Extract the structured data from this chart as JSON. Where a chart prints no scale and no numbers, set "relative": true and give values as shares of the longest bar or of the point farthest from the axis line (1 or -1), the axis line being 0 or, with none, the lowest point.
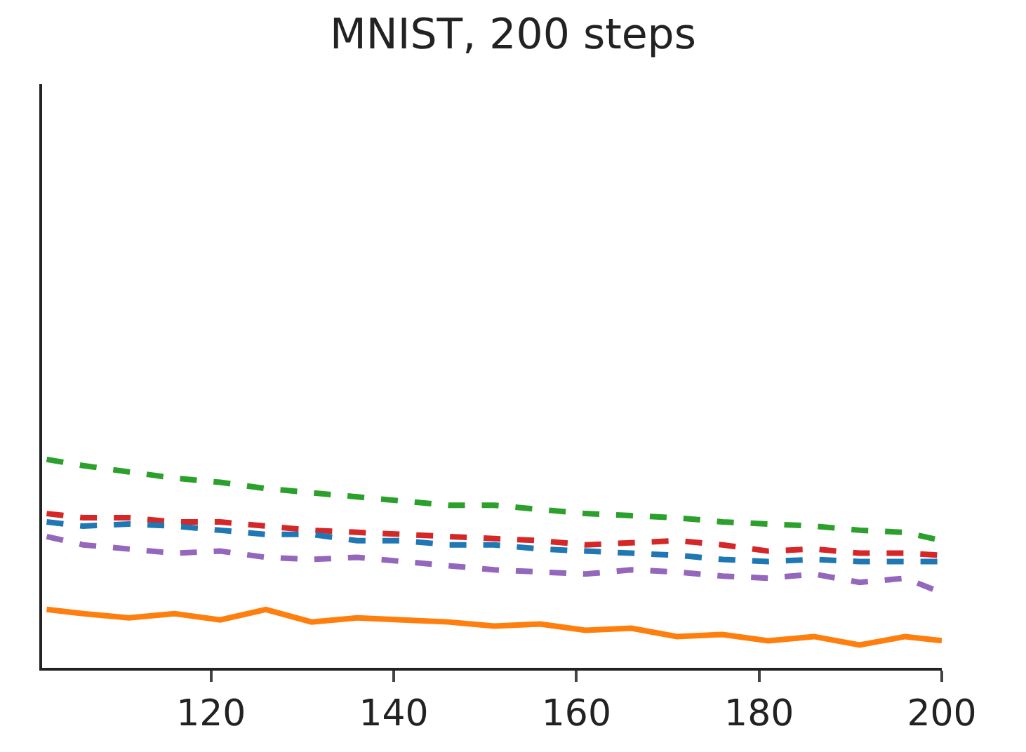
{
  "chart_data": {
    "type": "line",
    "title": "MNIST, 200 steps",
    "relative": true,
    "marker": "none",
    "x": [
      102,
      106,
      111,
      116,
      121,
      126,
      131,
      136,
      141,
      146,
      151,
      156,
      161,
      166,
      171,
      176,
      181,
      186,
      191,
      196,
      200
    ],
    "xlim": [
      101.5,
      200
    ],
    "xticks": [
      120,
      140,
      160,
      180,
      200
    ],
    "series": [
      {
        "color": "#2ca02c",
        "line_style": "dashed",
        "values": [
          1.0,
          0.97,
          0.94,
          0.91,
          0.89,
          0.86,
          0.84,
          0.82,
          0.8,
          0.78,
          0.78,
          0.76,
          0.74,
          0.73,
          0.72,
          0.7,
          0.69,
          0.68,
          0.66,
          0.65,
          0.61
        ]
      },
      {
        "color": "#d62728",
        "line_style": "dashed",
        "values": [
          0.74,
          0.72,
          0.72,
          0.7,
          0.7,
          0.68,
          0.66,
          0.65,
          0.64,
          0.63,
          0.62,
          0.61,
          0.59,
          0.6,
          0.61,
          0.59,
          0.56,
          0.57,
          0.55,
          0.55,
          0.54
        ]
      },
      {
        "color": "#1f77b4",
        "line_style": "dashed",
        "values": [
          0.7,
          0.68,
          0.69,
          0.68,
          0.66,
          0.64,
          0.64,
          0.61,
          0.61,
          0.59,
          0.59,
          0.57,
          0.56,
          0.55,
          0.54,
          0.52,
          0.51,
          0.52,
          0.51,
          0.51,
          0.51
        ]
      },
      {
        "color": "#9467bd",
        "line_style": "dashed",
        "values": [
          0.63,
          0.59,
          0.57,
          0.55,
          0.56,
          0.53,
          0.52,
          0.53,
          0.51,
          0.49,
          0.47,
          0.46,
          0.45,
          0.47,
          0.46,
          0.44,
          0.43,
          0.45,
          0.41,
          0.43,
          0.36
        ]
      },
      {
        "color": "#ff7f0e",
        "line_style": "solid",
        "values": [
          0.28,
          0.26,
          0.24,
          0.26,
          0.23,
          0.28,
          0.22,
          0.24,
          0.23,
          0.22,
          0.2,
          0.21,
          0.18,
          0.19,
          0.15,
          0.16,
          0.13,
          0.15,
          0.11,
          0.15,
          0.13
        ]
      }
    ]
  }
}
